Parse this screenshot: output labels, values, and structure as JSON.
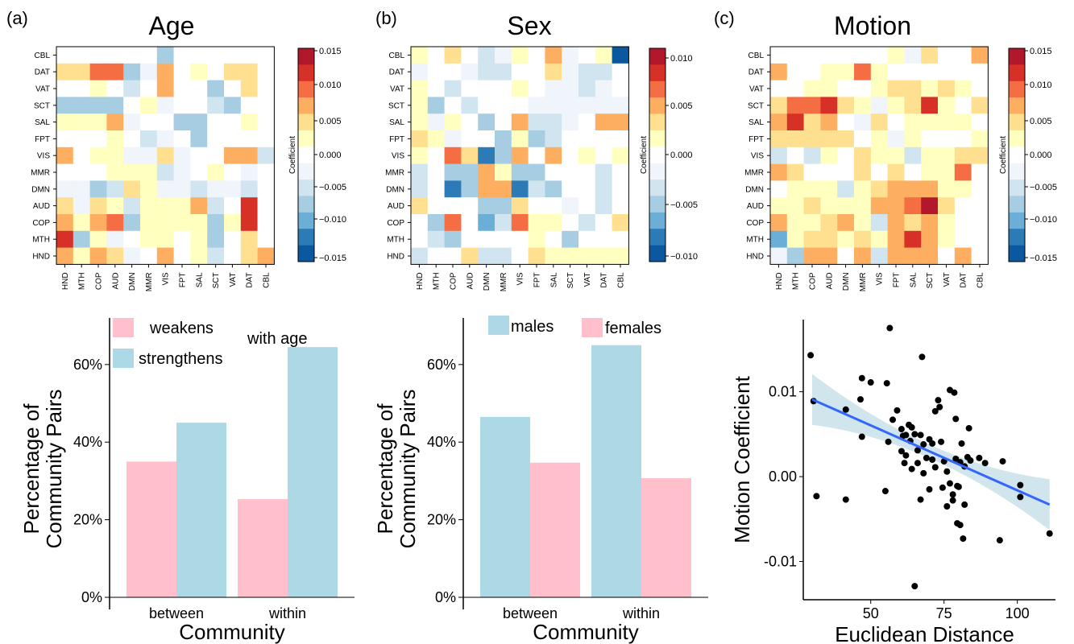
{
  "panels": [
    {
      "label": "(a)",
      "title": "Age"
    },
    {
      "label": "(b)",
      "title": "Sex"
    },
    {
      "label": "(c)",
      "title": "Motion"
    }
  ],
  "heatmap_rows": [
    "CBL",
    "DAT",
    "VAT",
    "SCT",
    "SAL",
    "FPT",
    "VIS",
    "MMR",
    "DMN",
    "AUD",
    "COP",
    "MTH",
    "HND"
  ],
  "heatmap_cols": [
    "HND",
    "MTH",
    "COP",
    "AUD",
    "DMN",
    "MMR",
    "VIS",
    "FPT",
    "SAL",
    "SCT",
    "VAT",
    "DAT",
    "CBL"
  ],
  "colorbar_label": "Coefficient",
  "colorbar_ticks": [
    [
      "0.015",
      "0.010",
      "0.005",
      "0.000",
      "−0.005",
      "−0.010",
      "−0.015"
    ],
    [
      "0.010",
      "0.005",
      "0.000",
      "−0.005",
      "−0.010"
    ],
    [
      "0.015",
      "0.010",
      "0.005",
      "0.000",
      "−0.005",
      "−0.010",
      "−0.015"
    ]
  ],
  "colors": {
    "weakens": "#ffc0cb",
    "strengthens": "#add8e6",
    "males": "#add8e6",
    "females": "#ffc0cb",
    "fit_line": "#3366ff",
    "ci_band": "#c9e1ea",
    "points": "#000000",
    "scale": [
      "#0a58a0",
      "#2c7bb6",
      "#6baed6",
      "#a6cde2",
      "#d1e5f0",
      "#f0f4fb",
      "#ffffff",
      "#ffffbf",
      "#fee090",
      "#fdae61",
      "#f46d43",
      "#d73027",
      "#b2182b"
    ]
  },
  "chart_data": [
    {
      "type": "heatmap",
      "title": "Age",
      "scale": "diverging",
      "cells": [
        [
          0,
          0,
          0,
          0,
          0,
          0,
          -3,
          0,
          0,
          0,
          0,
          0,
          0
        ],
        [
          2,
          2,
          4,
          4,
          -3,
          -1,
          3,
          0,
          1,
          0,
          2,
          2,
          0
        ],
        [
          0,
          0,
          1,
          0,
          -2,
          0,
          3,
          0,
          0,
          -3,
          0,
          2,
          0
        ],
        [
          -3,
          -3,
          -3,
          -3,
          0,
          1,
          -1,
          0,
          0,
          -2,
          -3,
          0,
          0
        ],
        [
          1,
          1,
          1,
          3,
          -1,
          0,
          0,
          -3,
          -3,
          0,
          0,
          1,
          0
        ],
        [
          0,
          0,
          0,
          1,
          0,
          -2,
          -1,
          0,
          -3,
          0,
          0,
          0,
          0
        ],
        [
          3,
          0,
          1,
          1,
          -1,
          -1,
          2,
          -1,
          0,
          0,
          3,
          3,
          -2
        ],
        [
          0,
          0,
          0,
          1,
          1,
          1,
          -2,
          -1,
          0,
          1,
          0,
          -1,
          0
        ],
        [
          -1,
          -1,
          -3,
          -2,
          2,
          1,
          -1,
          -1,
          -2,
          -1,
          -1,
          -2,
          0
        ],
        [
          2,
          -1,
          2,
          1,
          -2,
          1,
          1,
          1,
          3,
          -2,
          0,
          5,
          0
        ],
        [
          3,
          1,
          3,
          4,
          -3,
          1,
          1,
          1,
          1,
          -3,
          1,
          5,
          0
        ],
        [
          5,
          -3,
          1,
          -1,
          0,
          1,
          1,
          0,
          1,
          -3,
          0,
          2,
          0
        ],
        [
          3,
          1,
          3,
          2,
          -1,
          0,
          3,
          0,
          1,
          -2,
          0,
          2,
          3
        ]
      ]
    },
    {
      "type": "heatmap",
      "title": "Sex",
      "scale": "diverging",
      "cells": [
        [
          1,
          0,
          2,
          0,
          -2,
          -1,
          1,
          0,
          3,
          -1,
          0,
          1,
          -6
        ],
        [
          -1,
          0,
          0,
          -1,
          -2,
          -2,
          0,
          0,
          2,
          -1,
          -2,
          -2,
          0
        ],
        [
          1,
          0,
          -2,
          0,
          0,
          0,
          1,
          0,
          -1,
          -1,
          -2,
          -1,
          0
        ],
        [
          1,
          -3,
          0,
          -2,
          0,
          0,
          0,
          -1,
          -1,
          -1,
          -1,
          -1,
          -1
        ],
        [
          1,
          -1,
          1,
          0,
          -3,
          0,
          3,
          -2,
          -2,
          -1,
          0,
          3,
          3
        ],
        [
          2,
          1,
          -1,
          0,
          0,
          -3,
          1,
          -3,
          -2,
          0,
          0,
          0,
          0
        ],
        [
          1,
          0,
          4,
          2,
          -5,
          -3,
          3,
          0,
          3,
          0,
          1,
          0,
          1
        ],
        [
          -2,
          0,
          -3,
          -3,
          3,
          1,
          -3,
          -3,
          0,
          0,
          0,
          -2,
          0
        ],
        [
          -2,
          0,
          -5,
          -3,
          3,
          3,
          -5,
          -2,
          -3,
          0,
          0,
          -2,
          0
        ],
        [
          2,
          0,
          0,
          0,
          -3,
          -3,
          2,
          0,
          0,
          -1,
          0,
          -2,
          0
        ],
        [
          0,
          -3,
          4,
          0,
          -4,
          -2,
          4,
          1,
          1,
          0,
          -2,
          0,
          2
        ],
        [
          0,
          -2,
          -3,
          0,
          0,
          0,
          0,
          1,
          0,
          -3,
          0,
          0,
          0
        ],
        [
          -2,
          0,
          0,
          2,
          -2,
          -2,
          0,
          2,
          1,
          1,
          1,
          1,
          1
        ]
      ]
    },
    {
      "type": "heatmap",
      "title": "Motion",
      "scale": "diverging",
      "cells": [
        [
          0,
          0,
          0,
          0,
          0,
          0,
          0,
          1,
          -1,
          2,
          0,
          0,
          3
        ],
        [
          3,
          0,
          0,
          1,
          1,
          4,
          1,
          0,
          0,
          0,
          0,
          0,
          0
        ],
        [
          0,
          0,
          1,
          1,
          0,
          0,
          1,
          2,
          2,
          1,
          2,
          1,
          0
        ],
        [
          2,
          4,
          4,
          5,
          2,
          1,
          -1,
          1,
          2,
          5,
          1,
          0,
          2
        ],
        [
          3,
          5,
          2,
          3,
          0,
          -1,
          2,
          0,
          1,
          1,
          1,
          1,
          0
        ],
        [
          2,
          2,
          2,
          2,
          2,
          0,
          1,
          -1,
          1,
          0,
          0,
          0,
          1
        ],
        [
          -2,
          0,
          -2,
          1,
          0,
          2,
          1,
          1,
          -2,
          1,
          1,
          2,
          2
        ],
        [
          3,
          2,
          0,
          0,
          0,
          2,
          0,
          2,
          0,
          1,
          1,
          4,
          0
        ],
        [
          0,
          1,
          1,
          1,
          -2,
          1,
          2,
          3,
          3,
          3,
          1,
          1,
          0
        ],
        [
          1,
          1,
          2,
          1,
          1,
          1,
          3,
          3,
          4,
          6,
          2,
          0,
          0
        ],
        [
          3,
          1,
          1,
          2,
          3,
          1,
          -2,
          3,
          2,
          3,
          1,
          0,
          0
        ],
        [
          -4,
          1,
          2,
          2,
          1,
          2,
          1,
          3,
          5,
          3,
          1,
          0,
          0
        ],
        [
          -1,
          -3,
          3,
          3,
          0,
          3,
          -2,
          3,
          3,
          3,
          0,
          3,
          0
        ]
      ]
    },
    {
      "type": "bar",
      "panel": "Age",
      "categories": [
        "between",
        "within"
      ],
      "series": [
        {
          "name": "weakens",
          "values": [
            35,
            25.3
          ]
        },
        {
          "name": "strengthens",
          "values": [
            45,
            64.5
          ]
        }
      ],
      "annotation": "with age",
      "xlabel": "Community",
      "ylabel": "Percentage of\nCommunity Pairs",
      "ylim": [
        0,
        72
      ],
      "yticks": [
        "0%",
        "20%",
        "40%",
        "60%"
      ]
    },
    {
      "type": "bar",
      "panel": "Sex",
      "categories": [
        "between",
        "within"
      ],
      "series": [
        {
          "name": "males",
          "values": [
            46.5,
            65
          ]
        },
        {
          "name": "females",
          "values": [
            34.7,
            30.7
          ]
        }
      ],
      "xlabel": "Community",
      "ylabel": "Percentage of\nCommunity Pairs",
      "ylim": [
        0,
        72
      ],
      "yticks": [
        "0%",
        "20%",
        "40%",
        "60%"
      ]
    },
    {
      "type": "scatter",
      "panel": "Motion",
      "xlabel": "Euclidean Distance",
      "ylabel": "Motion Coefficient",
      "xlim": [
        27,
        113
      ],
      "ylim": [
        -0.0145,
        0.0185
      ],
      "xticks": [
        "50",
        "75",
        "100"
      ],
      "yticks": [
        "0.01",
        "0.00",
        "-0.01"
      ],
      "fit": {
        "x": [
          30,
          111
        ],
        "y": [
          0.0091,
          -0.0033
        ],
        "ci_half_width_ends": 0.003,
        "ci_half_width_mid": 0.0008
      },
      "points": [
        [
          29.5,
          0.0143
        ],
        [
          30.5,
          0.0089
        ],
        [
          31.5,
          -0.0023
        ],
        [
          41.5,
          0.0079
        ],
        [
          41.5,
          -0.0027
        ],
        [
          46.5,
          0.0091
        ],
        [
          47,
          0.0116
        ],
        [
          47,
          0.0047
        ],
        [
          50,
          0.0111
        ],
        [
          55.5,
          0.011
        ],
        [
          55,
          -0.0017
        ],
        [
          56.5,
          0.0175
        ],
        [
          56,
          0.0041
        ],
        [
          57.5,
          0.0067
        ],
        [
          59,
          0.0078
        ],
        [
          60.5,
          0.0056
        ],
        [
          60.5,
          0.003
        ],
        [
          61,
          0.0048
        ],
        [
          61.5,
          0.0016
        ],
        [
          62,
          0.0025
        ],
        [
          62,
          0.0049
        ],
        [
          63,
          0.0061
        ],
        [
          63.5,
          0.0042
        ],
        [
          64,
          0.0009
        ],
        [
          64,
          0.0058
        ],
        [
          65,
          0.005
        ],
        [
          65,
          -0.0129
        ],
        [
          66,
          0.0031
        ],
        [
          66,
          0.0016
        ],
        [
          67,
          -0.0027
        ],
        [
          67,
          0.0049
        ],
        [
          67.5,
          0.0141
        ],
        [
          68,
          0.0038
        ],
        [
          68,
          0.0004
        ],
        [
          69,
          0.0022
        ],
        [
          70,
          0.0044
        ],
        [
          70,
          -0.0015
        ],
        [
          71,
          0.002
        ],
        [
          71,
          0.0039
        ],
        [
          72,
          0.0011
        ],
        [
          72,
          0.0077
        ],
        [
          73,
          0.009
        ],
        [
          73.5,
          0.0082
        ],
        [
          74,
          0.0041
        ],
        [
          74.5,
          -0.0013
        ],
        [
          75,
          0.0018
        ],
        [
          76,
          0.0006
        ],
        [
          76,
          -0.0035
        ],
        [
          77,
          0.0102
        ],
        [
          77,
          -0.0008
        ],
        [
          78,
          -0.0028
        ],
        [
          78,
          -0.0021
        ],
        [
          78.5,
          0.0099
        ],
        [
          79,
          0.0068
        ],
        [
          79,
          0.0021
        ],
        [
          79.5,
          -0.0011
        ],
        [
          79.5,
          -0.0055
        ],
        [
          80,
          -0.0012
        ],
        [
          80.5,
          0.0017
        ],
        [
          80.5,
          -0.0057
        ],
        [
          81,
          0.0039
        ],
        [
          81.5,
          -0.0073
        ],
        [
          82,
          0.0012
        ],
        [
          82,
          -0.0033
        ],
        [
          83,
          0.0023
        ],
        [
          83.5,
          0.0057
        ],
        [
          84,
          0.0019
        ],
        [
          87,
          0.0022
        ],
        [
          89,
          0.0016
        ],
        [
          94,
          -0.0075
        ],
        [
          95,
          0.0018
        ],
        [
          101,
          -0.001
        ],
        [
          101,
          -0.0024
        ],
        [
          111,
          -0.0067
        ]
      ]
    }
  ]
}
